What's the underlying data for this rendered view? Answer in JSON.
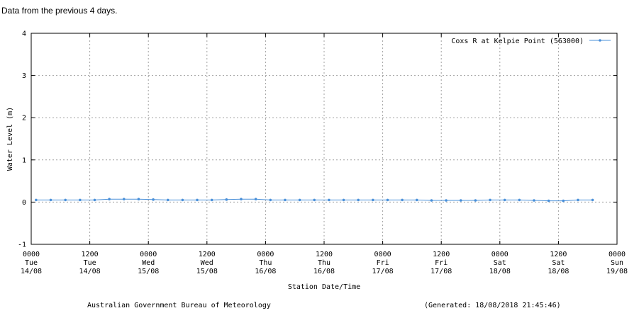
{
  "intro_text": "Data from the previous 4 days.",
  "footer": {
    "left": "Australian Government Bureau of Meteorology",
    "right": "(Generated: 18/08/2018 21:45:46)"
  },
  "colors": {
    "series": "#4a90d9",
    "grid": "#a0a0a0",
    "axis": "#000000"
  },
  "chart_data": {
    "type": "line",
    "title": "",
    "xlabel": "Station Date/Time",
    "ylabel": "Water Level (m)",
    "ylim": [
      -1,
      4
    ],
    "yticks": [
      "-1",
      "0",
      "1",
      "2",
      "3",
      "4"
    ],
    "xlim_hours": [
      0,
      120
    ],
    "xticks": [
      {
        "time": "0000",
        "day": "Tue",
        "date": "14/08"
      },
      {
        "time": "1200",
        "day": "Tue",
        "date": "14/08"
      },
      {
        "time": "0000",
        "day": "Wed",
        "date": "15/08"
      },
      {
        "time": "1200",
        "day": "Wed",
        "date": "15/08"
      },
      {
        "time": "0000",
        "day": "Thu",
        "date": "16/08"
      },
      {
        "time": "1200",
        "day": "Thu",
        "date": "16/08"
      },
      {
        "time": "0000",
        "day": "Fri",
        "date": "17/08"
      },
      {
        "time": "1200",
        "day": "Fri",
        "date": "17/08"
      },
      {
        "time": "0000",
        "day": "Sat",
        "date": "18/08"
      },
      {
        "time": "1200",
        "day": "Sat",
        "date": "18/08"
      },
      {
        "time": "0000",
        "day": "Sun",
        "date": "19/08"
      }
    ],
    "grid": true,
    "legend_position": "top-right",
    "series": [
      {
        "name": "Coxs R at Kelpie Point (563000)",
        "x_hours": [
          1,
          4,
          7,
          10,
          13,
          16,
          19,
          22,
          25,
          28,
          31,
          34,
          37,
          40,
          43,
          46,
          49,
          52,
          55,
          58,
          61,
          64,
          67,
          70,
          73,
          76,
          79,
          82,
          85,
          88,
          91,
          94,
          97,
          100,
          103,
          106,
          109,
          112,
          115
        ],
        "values": [
          0.05,
          0.05,
          0.05,
          0.05,
          0.05,
          0.07,
          0.07,
          0.07,
          0.06,
          0.05,
          0.05,
          0.05,
          0.05,
          0.06,
          0.07,
          0.07,
          0.05,
          0.05,
          0.05,
          0.05,
          0.05,
          0.05,
          0.05,
          0.05,
          0.05,
          0.05,
          0.05,
          0.04,
          0.04,
          0.04,
          0.04,
          0.05,
          0.05,
          0.05,
          0.04,
          0.03,
          0.03,
          0.05,
          0.05
        ]
      }
    ]
  }
}
